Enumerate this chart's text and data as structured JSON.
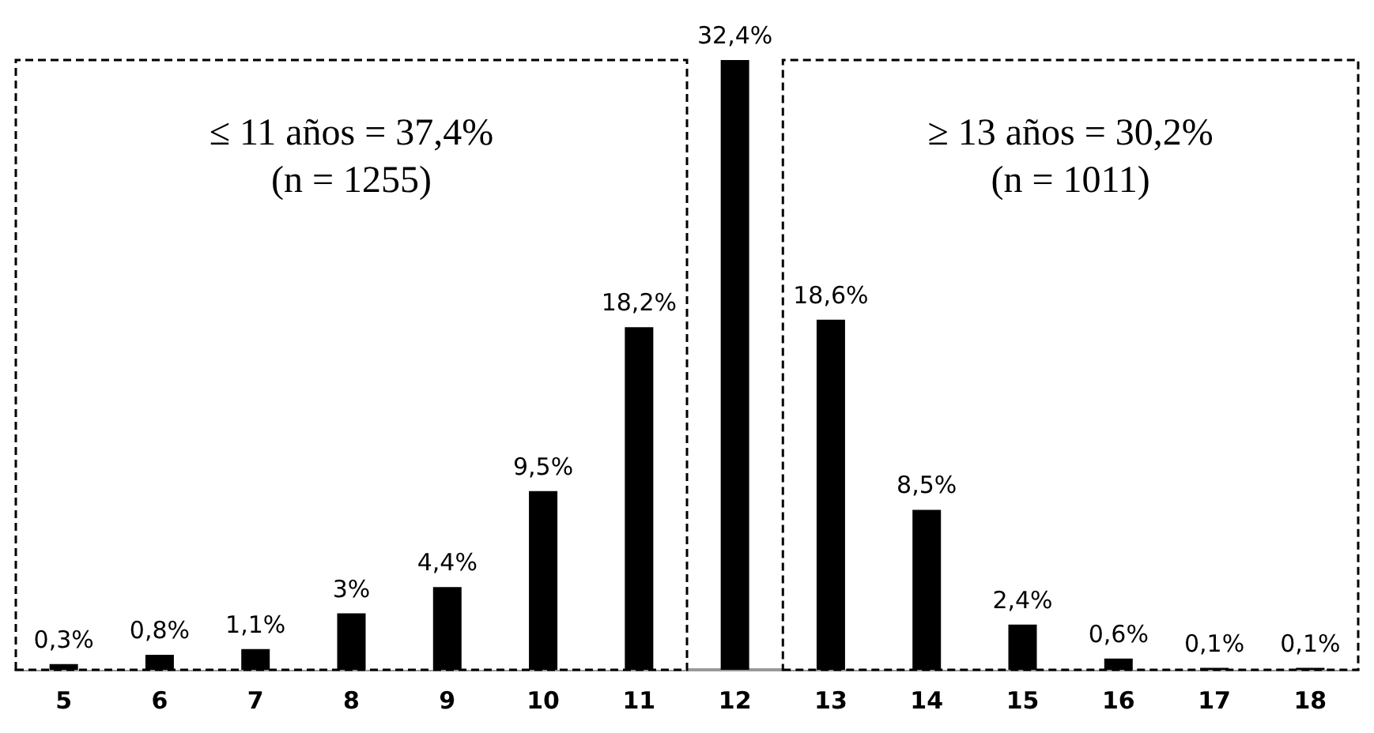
{
  "chart_data": {
    "type": "bar",
    "categories": [
      "5",
      "6",
      "7",
      "8",
      "9",
      "10",
      "11",
      "12",
      "13",
      "14",
      "15",
      "16",
      "17",
      "18"
    ],
    "values": [
      0.3,
      0.8,
      1.1,
      3,
      4.4,
      9.5,
      18.2,
      32.4,
      18.6,
      8.5,
      2.4,
      0.6,
      0.1,
      0.1
    ],
    "value_labels": [
      "0,3%",
      "0,8%",
      "1,1%",
      "3%",
      "4,4%",
      "9,5%",
      "18,2%",
      "32,4%",
      "18,6%",
      "8,5%",
      "2,4%",
      "0,6%",
      "0,1%",
      "0,1%"
    ],
    "color": "#000000",
    "bands": [
      {
        "axis": "x",
        "from": "5",
        "to": "11",
        "label": "≤ 11 años = 37,4%\n(n = 1255)",
        "color": "#ffffff"
      },
      {
        "axis": "x",
        "from": "13",
        "to": "18",
        "label": "≥ 13 años = 30,2%\n(n = 1011)",
        "color": "#ffffff"
      }
    ]
  }
}
